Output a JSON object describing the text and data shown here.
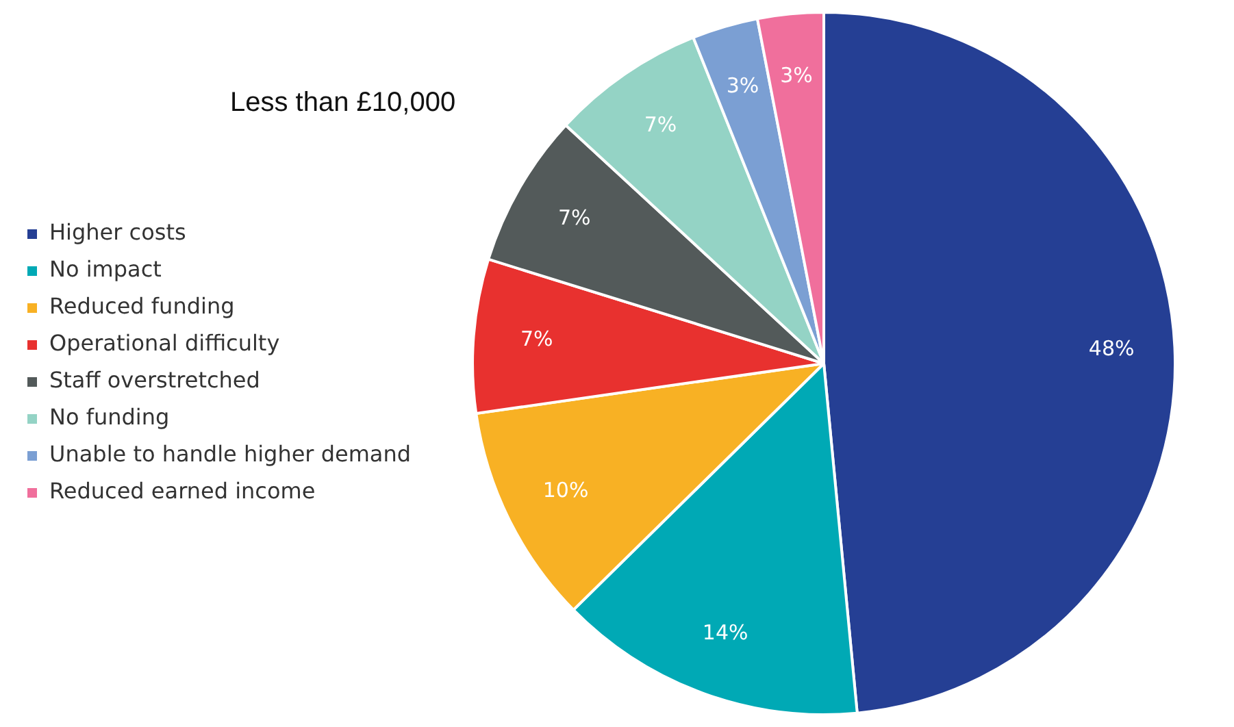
{
  "chart_data": {
    "type": "pie",
    "title": "Less than £10,000",
    "categories": [
      "Higher costs",
      "No impact",
      "Reduced funding",
      "Operational difficulty",
      "Staff overstretched",
      "No funding",
      "Unable to handle higher demand",
      "Reduced earned income"
    ],
    "values": [
      48,
      14,
      10,
      7,
      7,
      7,
      3,
      3
    ],
    "colors": [
      "#253f94",
      "#00a9b5",
      "#f8b124",
      "#e8312f",
      "#535a5a",
      "#94d3c5",
      "#7b9fd3",
      "#f06f9c"
    ],
    "value_labels": [
      "48%",
      "14%",
      "10%",
      "7%",
      "7%",
      "7%",
      "3%",
      "3%"
    ],
    "legend": "left"
  }
}
